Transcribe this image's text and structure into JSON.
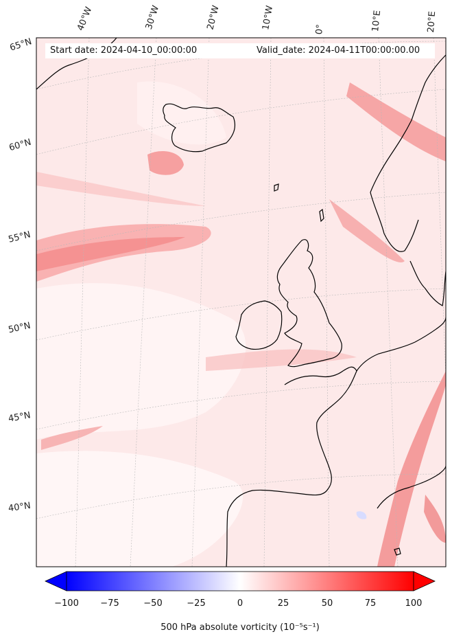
{
  "map": {
    "start_date": "Start date: 2024-04-10_00:00:00",
    "valid_date": "Valid_date: 2024-04-11T00:00:00.00",
    "lon_labels": [
      "40°W",
      "30°W",
      "20°W",
      "10°W",
      "0°",
      "10°E",
      "20°E"
    ],
    "lat_labels": [
      "65°N",
      "60°N",
      "55°N",
      "50°N",
      "45°N",
      "40°N"
    ],
    "field": "500 hPa absolute vorticity",
    "colors": {
      "negative": "#0000ff",
      "zero": "#ffffff",
      "positive": "#ff0000",
      "coast": "#000000",
      "grid": "#b0b0b0"
    }
  },
  "colorbar": {
    "min": -100,
    "max": 100,
    "ticks": [
      "−100",
      "−75",
      "−50",
      "−25",
      "0",
      "25",
      "50",
      "75",
      "100"
    ],
    "label": "500 hPa absolute vorticity (10⁻⁵s⁻¹)",
    "extend": "both"
  }
}
